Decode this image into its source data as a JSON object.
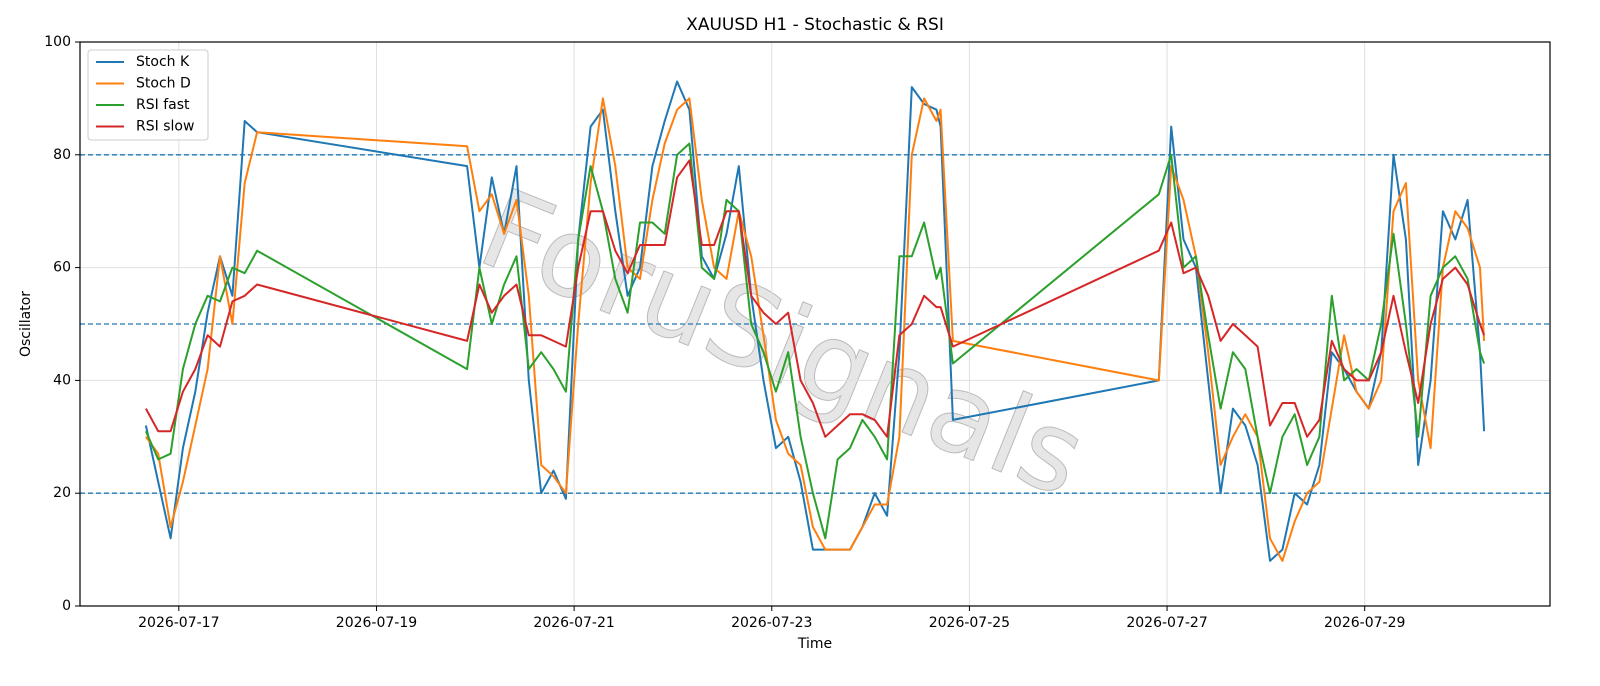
{
  "chart_data": {
    "type": "line",
    "title": "XAUUSD H1 - Stochastic & RSI",
    "x_label": "Time",
    "y_label": "Oscillator",
    "watermark": "ForuSignals",
    "x": [
      "2026-07-16 16:00",
      "2026-07-16 19:00",
      "2026-07-16 22:00",
      "2026-07-17 01:00",
      "2026-07-17 04:00",
      "2026-07-17 07:00",
      "2026-07-17 10:00",
      "2026-07-17 13:00",
      "2026-07-17 16:00",
      "2026-07-17 19:00",
      "2026-07-19 22:00",
      "2026-07-20 01:00",
      "2026-07-20 04:00",
      "2026-07-20 07:00",
      "2026-07-20 10:00",
      "2026-07-20 13:00",
      "2026-07-20 16:00",
      "2026-07-20 19:00",
      "2026-07-20 22:00",
      "2026-07-21 01:00",
      "2026-07-21 04:00",
      "2026-07-21 07:00",
      "2026-07-21 10:00",
      "2026-07-21 13:00",
      "2026-07-21 16:00",
      "2026-07-21 19:00",
      "2026-07-21 22:00",
      "2026-07-22 01:00",
      "2026-07-22 04:00",
      "2026-07-22 07:00",
      "2026-07-22 10:00",
      "2026-07-22 13:00",
      "2026-07-22 16:00",
      "2026-07-22 19:00",
      "2026-07-22 22:00",
      "2026-07-23 01:00",
      "2026-07-23 04:00",
      "2026-07-23 07:00",
      "2026-07-23 10:00",
      "2026-07-23 13:00",
      "2026-07-23 16:00",
      "2026-07-23 19:00",
      "2026-07-23 22:00",
      "2026-07-24 01:00",
      "2026-07-24 04:00",
      "2026-07-24 07:00",
      "2026-07-24 10:00",
      "2026-07-24 13:00",
      "2026-07-24 16:00",
      "2026-07-24 17:00",
      "2026-07-24 20:00",
      "2026-07-26 22:00",
      "2026-07-27 01:00",
      "2026-07-27 04:00",
      "2026-07-27 07:00",
      "2026-07-27 10:00",
      "2026-07-27 13:00",
      "2026-07-27 16:00",
      "2026-07-27 19:00",
      "2026-07-27 22:00",
      "2026-07-28 01:00",
      "2026-07-28 04:00",
      "2026-07-28 07:00",
      "2026-07-28 10:00",
      "2026-07-28 13:00",
      "2026-07-28 16:00",
      "2026-07-28 19:00",
      "2026-07-28 22:00",
      "2026-07-29 01:00",
      "2026-07-29 04:00",
      "2026-07-29 07:00",
      "2026-07-29 10:00",
      "2026-07-29 13:00",
      "2026-07-29 16:00",
      "2026-07-29 19:00",
      "2026-07-29 22:00",
      "2026-07-30 01:00",
      "2026-07-30 04:00",
      "2026-07-30 05:00"
    ],
    "series": [
      {
        "name": "Stoch K",
        "color": "#1f77b4",
        "values": [
          32,
          22,
          12,
          28,
          38,
          52,
          62,
          55,
          86,
          84,
          78,
          60,
          76,
          66,
          78,
          40,
          20,
          24,
          19,
          65,
          85,
          88,
          70,
          55,
          60,
          78,
          86,
          93,
          88,
          62,
          58,
          66,
          78,
          55,
          40,
          28,
          30,
          22,
          10,
          10,
          10,
          10,
          14,
          20,
          16,
          45,
          92,
          89,
          88,
          85,
          33,
          40,
          85,
          65,
          60,
          40,
          20,
          35,
          32,
          25,
          8,
          10,
          20,
          18,
          25,
          45,
          42,
          38,
          35,
          45,
          80,
          65,
          25,
          40,
          70,
          65,
          72,
          45,
          31
        ]
      },
      {
        "name": "Stoch D",
        "color": "#ff7f0e",
        "values": [
          30,
          27,
          14,
          22,
          32,
          42,
          62,
          50,
          75,
          84,
          81.5,
          70,
          73,
          66,
          72,
          55,
          25,
          23,
          20,
          50,
          75,
          90,
          78,
          60,
          58,
          72,
          82,
          88,
          90,
          72,
          60,
          58,
          70,
          62,
          48,
          33,
          27,
          25,
          14,
          10,
          10,
          10,
          14,
          18,
          18,
          30,
          80,
          90,
          86,
          88,
          47,
          40,
          78,
          72,
          62,
          45,
          25,
          30,
          34,
          30,
          12,
          8,
          15,
          20,
          22,
          35,
          48,
          38,
          35,
          40,
          70,
          75,
          40,
          28,
          60,
          70,
          67,
          60,
          47
        ]
      },
      {
        "name": "RSI fast",
        "color": "#2ca02c",
        "values": [
          31,
          26,
          27,
          42,
          50,
          55,
          54,
          60,
          59,
          63,
          42,
          60,
          50,
          57,
          62,
          42,
          45,
          42,
          38,
          65,
          78,
          70,
          58,
          52,
          68,
          68,
          66,
          80,
          82,
          60,
          58,
          72,
          70,
          50,
          45,
          38,
          45,
          30,
          20,
          12,
          26,
          28,
          33,
          30,
          26,
          62,
          62,
          68,
          58,
          60,
          43,
          73,
          80,
          60,
          62,
          48,
          35,
          45,
          42,
          30,
          20,
          30,
          34,
          25,
          30,
          55,
          40,
          42,
          40,
          50,
          66,
          50,
          30,
          55,
          60,
          62,
          58,
          45,
          43
        ]
      },
      {
        "name": "RSI slow",
        "color": "#d62728",
        "values": [
          35,
          31,
          31,
          38,
          42,
          48,
          46,
          54,
          55,
          57,
          47,
          57,
          52,
          55,
          57,
          48,
          48,
          47,
          46,
          60,
          70,
          70,
          63,
          59,
          64,
          64,
          64,
          76,
          79,
          64,
          64,
          70,
          70,
          55,
          52,
          50,
          52,
          40,
          36,
          30,
          32,
          34,
          34,
          33,
          30,
          48,
          50,
          55,
          53,
          53,
          46,
          63,
          68,
          59,
          60,
          55,
          47,
          50,
          48,
          46,
          32,
          36,
          36,
          30,
          33,
          47,
          42,
          40,
          40,
          45,
          55,
          45,
          36,
          50,
          58,
          60,
          57,
          50,
          48
        ]
      }
    ],
    "xlim": [
      "2026-07-16 00:00",
      "2026-07-30 21:00"
    ],
    "xticks": [
      "2026-07-17",
      "2026-07-19",
      "2026-07-21",
      "2026-07-23",
      "2026-07-25",
      "2026-07-27",
      "2026-07-29"
    ],
    "ylim": [
      0,
      100
    ],
    "yticks": [
      0,
      20,
      40,
      60,
      80,
      100
    ],
    "hlines": [
      20,
      50,
      80
    ],
    "hline_color": "#1f77b4",
    "grid": true,
    "legend": "upper left"
  }
}
